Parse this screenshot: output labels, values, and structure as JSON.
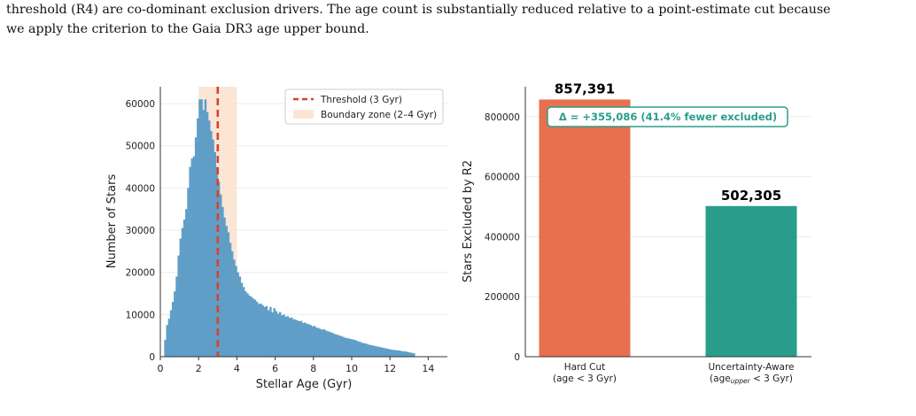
{
  "text": {
    "line1": "threshold (R4) are co-dominant exclusion drivers. The age count is substantially reduced relative to a point-estimate cut because",
    "line2": "we apply the criterion to the Gaia DR3 age upper bound."
  },
  "colors": {
    "histogram": "#5B9BC6",
    "threshold": "#D9412E",
    "boundary_zone": "#F9DDC8",
    "hard_cut": "#E8704F",
    "uncertainty_aware": "#2A9D8A",
    "delta_text": "#2A9D8A"
  },
  "chart_data": [
    {
      "type": "bar",
      "subtype": "histogram",
      "xlabel": "Stellar Age (Gyr)",
      "ylabel": "Number of Stars",
      "xlim": [
        0,
        15
      ],
      "ylim": [
        0,
        64000
      ],
      "xticks": [
        "0",
        "2",
        "4",
        "6",
        "8",
        "10",
        "12",
        "14"
      ],
      "yticks": [
        "0",
        "10000",
        "20000",
        "30000",
        "40000",
        "50000",
        "60000"
      ],
      "grid": true,
      "legend_position": "top-right",
      "bin_start": 0.2,
      "bin_width": 0.1,
      "values": [
        4000,
        7500,
        9000,
        11000,
        13000,
        15500,
        19000,
        24000,
        28000,
        30500,
        32500,
        35000,
        40000,
        45000,
        47000,
        47500,
        52000,
        56500,
        61000,
        61000,
        58500,
        61000,
        58000,
        56000,
        53500,
        51500,
        48500,
        45000,
        41500,
        38500,
        35500,
        33000,
        31000,
        29500,
        27000,
        25000,
        23000,
        21500,
        20000,
        19000,
        17500,
        16500,
        15500,
        15000,
        14500,
        14200,
        13800,
        13500,
        13000,
        12500,
        12600,
        12200,
        11800,
        12000,
        11000,
        11800,
        10500,
        11500,
        10800,
        10200,
        10600,
        9800,
        10000,
        9500,
        9600,
        9200,
        9300,
        8900,
        8800,
        8600,
        8400,
        8500,
        8000,
        8100,
        7800,
        7700,
        7500,
        7200,
        7300,
        6900,
        6800,
        6600,
        6400,
        6500,
        6200,
        6000,
        5900,
        5700,
        5500,
        5300,
        5200,
        5000,
        4900,
        4700,
        4500,
        4400,
        4300,
        4200,
        4100,
        4000,
        3800,
        3600,
        3500,
        3300,
        3200,
        3100,
        2900,
        2800,
        2700,
        2600,
        2500,
        2400,
        2300,
        2200,
        2100,
        2000,
        1900,
        1800,
        1700,
        1600,
        1600,
        1500,
        1500,
        1400,
        1300,
        1300,
        1200,
        1100,
        1000,
        900,
        800
      ],
      "threshold": 3,
      "boundary_zone": [
        2,
        4
      ],
      "legend": [
        "Threshold (3 Gyr)",
        "Boundary zone (2–4 Gyr)"
      ]
    },
    {
      "type": "bar",
      "ylabel": "Stars Excluded by R2",
      "ylim": [
        0,
        900000
      ],
      "yticks": [
        "0",
        "200000",
        "400000",
        "600000",
        "800000"
      ],
      "grid": true,
      "categories": [
        {
          "line1": "Hard Cut",
          "line2": "(age < 3 Gyr)"
        },
        {
          "line1": "Uncertainty-Aware",
          "line2_pre": "(age",
          "line2_sub": "upper",
          "line2_post": " < 3 Gyr)"
        }
      ],
      "values": [
        857391,
        502305
      ],
      "value_labels": [
        "857,391",
        "502,305"
      ],
      "annotation": "Δ = +355,086 (41.4% fewer excluded)"
    }
  ]
}
